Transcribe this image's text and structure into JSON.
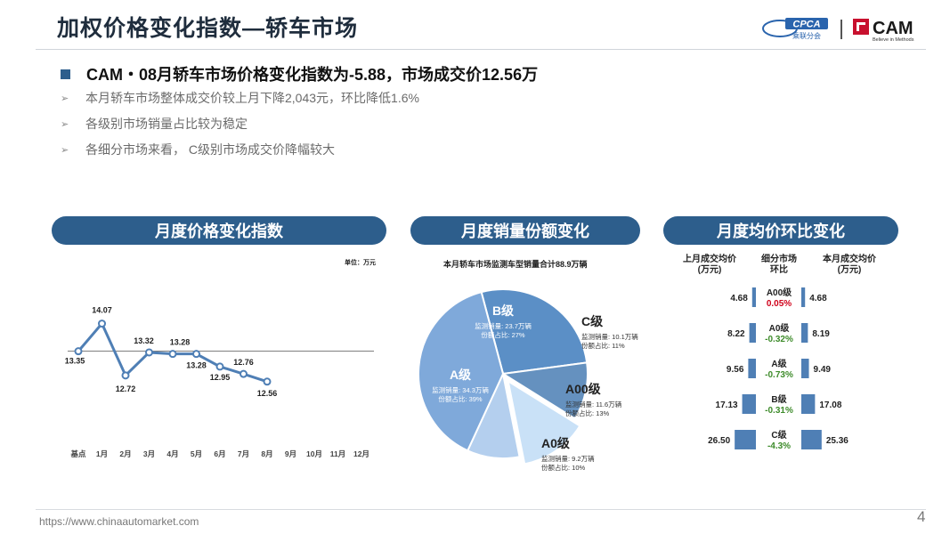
{
  "header": {
    "title": "加权价格变化指数—轿车市场",
    "logo_cpca_text": "CPCA",
    "logo_cpca_sub": "乘联分会",
    "logo_cam_text": "CAM",
    "logo_cam_sub": "Believe in Methods"
  },
  "summary": {
    "headline": "CAM・08月轿车市场价格变化指数为-5.88，市场成交价12.56万",
    "bullets": [
      "本月轿车市场整体成交价较上月下降2,043元，环比降低1.6%",
      "各级别市场销量占比较为稳定",
      "各细分市场来看， C级别市场成交价降幅较大"
    ]
  },
  "panels": {
    "index_title": "月度价格变化指数",
    "share_title": "月度销量份额变化",
    "ratio_title": "月度均价环比变化"
  },
  "footer": {
    "url": "https://www.chinaautomarket.com",
    "page": "4"
  },
  "chart_data": [
    {
      "type": "line",
      "unit_label": "单位：万元",
      "categories": [
        "基点",
        "1月",
        "2月",
        "3月",
        "4月",
        "5月",
        "6月",
        "7月",
        "8月",
        "9月",
        "10月",
        "11月",
        "12月"
      ],
      "series": [
        {
          "values": [
            13.35,
            14.07,
            12.72,
            13.32,
            13.28,
            13.28,
            12.95,
            12.76,
            12.56,
            null,
            null,
            null,
            null
          ]
        }
      ],
      "point_labels": [
        "13.35",
        "14.07",
        "12.72",
        "13.32",
        "13.28",
        "13.28",
        "12.95",
        "12.76",
        "12.56"
      ],
      "baseline": 13.35,
      "ylim": [
        12.3,
        14.5
      ],
      "color": "#4f7fb5"
    },
    {
      "type": "pie",
      "caption": "本月轿车市场监测车型销量合计88.9万辆",
      "total": 88.9,
      "slices": [
        {
          "name": "B级",
          "volume": "监测销量: 23.7万辆",
          "share_text": "份额占比: 27%",
          "value": 27,
          "color": "#5b8fc6"
        },
        {
          "name": "C级",
          "volume": "监测销量: 10.1万辆",
          "share_text": "份额占比: 11%",
          "value": 11,
          "color": "#6591bf"
        },
        {
          "name": "A00级",
          "volume": "监测销量: 11.6万辆",
          "share_text": "份额占比: 13%",
          "value": 13,
          "color": "#c9e1f7"
        },
        {
          "name": "A0级",
          "volume": "监测销量: 9.2万辆",
          "share_text": "份额占比: 10%",
          "value": 10,
          "color": "#b4cfee"
        },
        {
          "name": "A级",
          "volume": "监测销量: 34.3万辆",
          "share_text": "份额占比: 39%",
          "value": 39,
          "color": "#7fa9da"
        }
      ]
    },
    {
      "type": "bar",
      "headers": {
        "prev": "上月成交均价\n(万元)",
        "segment": "细分市场\n环比",
        "curr": "本月成交均价\n(万元)"
      },
      "rows": [
        {
          "segment": "A00级",
          "change": "0.05%",
          "change_color": "#d0021b",
          "prev": 4.68,
          "prev_label": "4.68",
          "curr": 4.68,
          "curr_label": "4.68"
        },
        {
          "segment": "A0级",
          "change": "-0.32%",
          "change_color": "#3d8b2a",
          "prev": 8.22,
          "prev_label": "8.22",
          "curr": 8.19,
          "curr_label": "8.19"
        },
        {
          "segment": "A级",
          "change": "-0.73%",
          "change_color": "#3d8b2a",
          "prev": 9.56,
          "prev_label": "9.56",
          "curr": 9.49,
          "curr_label": "9.49"
        },
        {
          "segment": "B级",
          "change": "-0.31%",
          "change_color": "#3d8b2a",
          "prev": 17.13,
          "prev_label": "17.13",
          "curr": 17.08,
          "curr_label": "17.08"
        },
        {
          "segment": "C级",
          "change": "-4.3%",
          "change_color": "#3d8b2a",
          "prev": 26.5,
          "prev_label": "26.50",
          "curr": 25.36,
          "curr_label": "25.36"
        }
      ],
      "bar_color": "#4f7fb5"
    }
  ]
}
